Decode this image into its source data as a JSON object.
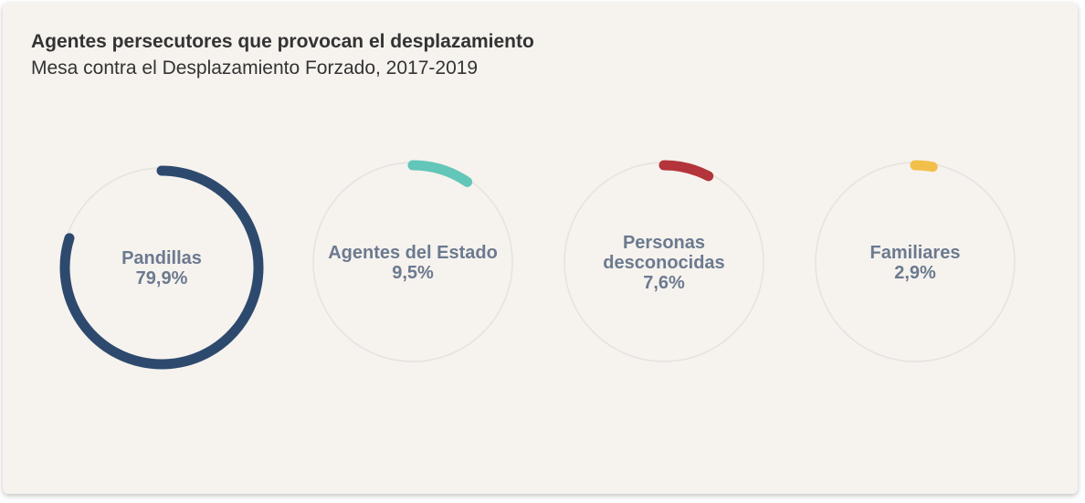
{
  "title": "Agentes persecutores que provocan el desplazamiento",
  "subtitle": "Mesa contra el Desplazamiento Forzado, 2017-2019",
  "chart_data": {
    "type": "pie",
    "title": "Agentes persecutores que provocan el desplazamiento",
    "subtitle": "Mesa contra el Desplazamiento Forzado, 2017-2019",
    "unit": "%",
    "items": [
      {
        "label_lines": [
          "Pandillas"
        ],
        "value_label": "79,9%",
        "value": 79.9,
        "color": "#2d4a6e"
      },
      {
        "label_lines": [
          "Agentes del Estado"
        ],
        "value_label": "9,5%",
        "value": 9.5,
        "color": "#62c6b8"
      },
      {
        "label_lines": [
          "Personas",
          "desconocidas"
        ],
        "value_label": "7,6%",
        "value": 7.6,
        "color": "#b3343a"
      },
      {
        "label_lines": [
          "Familiares"
        ],
        "value_label": "2,9%",
        "value": 2.9,
        "color": "#f2c04a"
      }
    ],
    "track_color": "#e5e2df"
  }
}
